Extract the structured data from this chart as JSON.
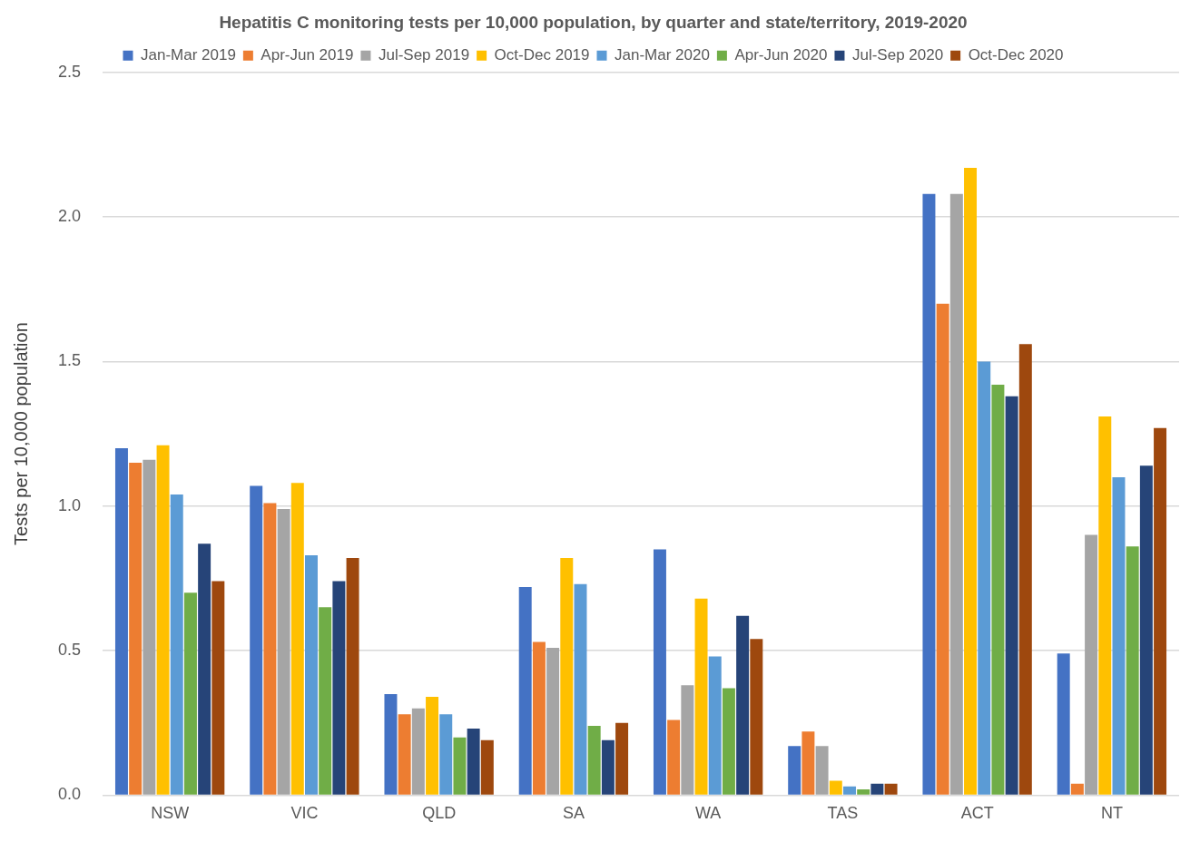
{
  "chart_data": {
    "type": "bar",
    "title": "Hepatitis C monitoring tests per 10,000 population, by quarter and state/territory, 2019-2020",
    "ylabel": "Tests per 10,000 population",
    "categories": [
      "NSW",
      "VIC",
      "QLD",
      "SA",
      "WA",
      "TAS",
      "ACT",
      "NT"
    ],
    "series": [
      {
        "name": "Jan-Mar 2019",
        "color": "#4472c4",
        "values": [
          1.2,
          1.07,
          0.35,
          0.72,
          0.85,
          0.17,
          2.08,
          0.49
        ]
      },
      {
        "name": "Apr-Jun 2019",
        "color": "#ed7d31",
        "values": [
          1.15,
          1.01,
          0.28,
          0.53,
          0.26,
          0.22,
          1.7,
          0.04
        ]
      },
      {
        "name": "Jul-Sep 2019",
        "color": "#a5a5a5",
        "values": [
          1.16,
          0.99,
          0.3,
          0.51,
          0.38,
          0.17,
          2.08,
          0.9
        ]
      },
      {
        "name": "Oct-Dec 2019",
        "color": "#ffc000",
        "values": [
          1.21,
          1.08,
          0.34,
          0.82,
          0.68,
          0.05,
          2.17,
          1.31
        ]
      },
      {
        "name": "Jan-Mar 2020",
        "color": "#5b9bd5",
        "values": [
          1.04,
          0.83,
          0.28,
          0.73,
          0.48,
          0.03,
          1.5,
          1.1
        ]
      },
      {
        "name": "Apr-Jun 2020",
        "color": "#70ad47",
        "values": [
          0.7,
          0.65,
          0.2,
          0.24,
          0.37,
          0.02,
          1.42,
          0.86
        ]
      },
      {
        "name": "Jul-Sep 2020",
        "color": "#264478",
        "values": [
          0.87,
          0.74,
          0.23,
          0.19,
          0.62,
          0.04,
          1.38,
          1.14
        ]
      },
      {
        "name": "Oct-Dec 2020",
        "color": "#9e480e",
        "values": [
          0.74,
          0.82,
          0.19,
          0.25,
          0.54,
          0.04,
          1.56,
          1.27
        ]
      }
    ],
    "ylim": [
      0,
      2.5
    ],
    "yticks": [
      {
        "value": 0,
        "label": "0.0"
      },
      {
        "value": 0.5,
        "label": "0.5"
      },
      {
        "value": 1,
        "label": "1.0"
      },
      {
        "value": 1.5,
        "label": "1.5"
      },
      {
        "value": 2,
        "label": "2.0"
      },
      {
        "value": 2.5,
        "label": "2.5"
      }
    ],
    "grid": "y",
    "legend": "top"
  }
}
